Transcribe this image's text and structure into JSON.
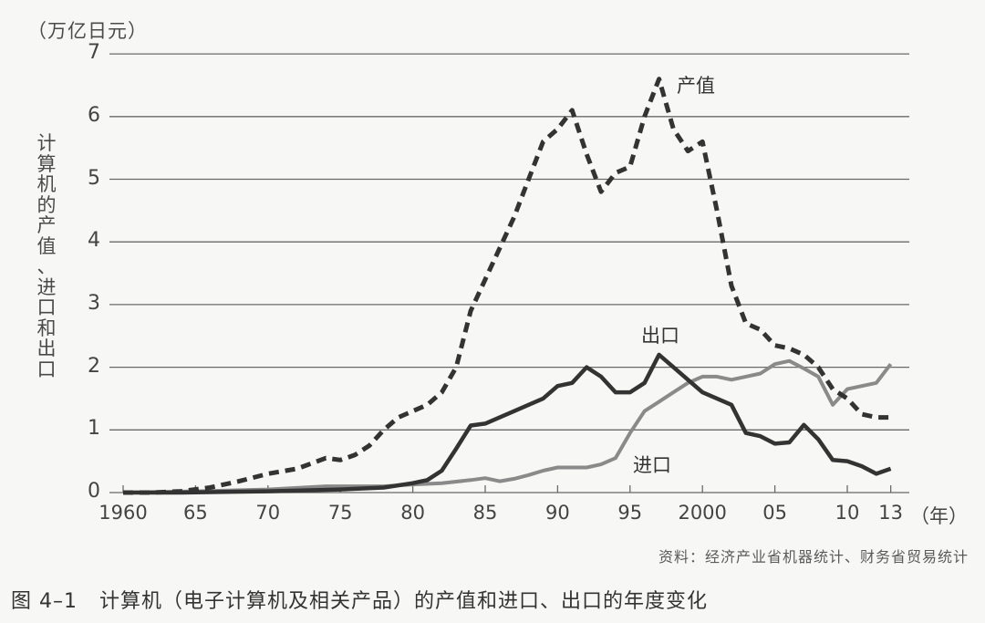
{
  "chart_data": {
    "type": "line",
    "title": "计算机（电子计算机及相关产品）的产值和进口、出口的年度变化",
    "figure_number": "图 4–1",
    "xlabel": "（年）",
    "ylabel": "计算机的产值、进口和出口",
    "y_unit": "（万亿日元）",
    "ylim": [
      0,
      7
    ],
    "yticks": [
      "0",
      "1",
      "2",
      "3",
      "4",
      "5",
      "6",
      "7"
    ],
    "xticks": [
      {
        "year": 1960,
        "label": "1960"
      },
      {
        "year": 1965,
        "label": "65"
      },
      {
        "year": 1970,
        "label": "70"
      },
      {
        "year": 1975,
        "label": "75"
      },
      {
        "year": 1980,
        "label": "80"
      },
      {
        "year": 1985,
        "label": "85"
      },
      {
        "year": 1990,
        "label": "90"
      },
      {
        "year": 1995,
        "label": "95"
      },
      {
        "year": 2000,
        "label": "2000"
      },
      {
        "year": 2005,
        "label": "05"
      },
      {
        "year": 2010,
        "label": "10"
      },
      {
        "year": 2013,
        "label": "13"
      }
    ],
    "grid": true,
    "legend_position": "inline labels",
    "source": "资料：经济产业省机器统计、财务省贸易统计",
    "series": [
      {
        "name": "产值",
        "style": "dashed",
        "color": "#333333",
        "x": [
          1960,
          1962,
          1964,
          1966,
          1968,
          1970,
          1972,
          1974,
          1975,
          1976,
          1977,
          1978,
          1979,
          1980,
          1981,
          1982,
          1983,
          1984,
          1985,
          1986,
          1987,
          1988,
          1989,
          1990,
          1991,
          1992,
          1993,
          1994,
          1995,
          1996,
          1997,
          1998,
          1999,
          2000,
          2001,
          2002,
          2003,
          2004,
          2005,
          2006,
          2007,
          2008,
          2009,
          2010,
          2011,
          2012,
          2013
        ],
        "values": [
          0,
          0,
          0.02,
          0.08,
          0.18,
          0.3,
          0.38,
          0.55,
          0.52,
          0.6,
          0.75,
          1.0,
          1.2,
          1.3,
          1.4,
          1.6,
          2.0,
          2.9,
          3.4,
          3.9,
          4.4,
          5.0,
          5.6,
          5.8,
          6.1,
          5.4,
          4.8,
          5.1,
          5.2,
          6.0,
          6.6,
          5.8,
          5.45,
          5.6,
          4.5,
          3.3,
          2.7,
          2.6,
          2.35,
          2.3,
          2.2,
          2.0,
          1.65,
          1.5,
          1.25,
          1.2,
          1.2
        ]
      },
      {
        "name": "出口",
        "style": "solid",
        "color": "#333333",
        "x": [
          1960,
          1964,
          1970,
          1975,
          1978,
          1980,
          1981,
          1982,
          1983,
          1984,
          1985,
          1986,
          1987,
          1988,
          1989,
          1990,
          1991,
          1992,
          1993,
          1994,
          1995,
          1996,
          1997,
          1998,
          1999,
          2000,
          2001,
          2002,
          2003,
          2004,
          2005,
          2006,
          2007,
          2008,
          2009,
          2010,
          2011,
          2012,
          2013
        ],
        "values": [
          0,
          0,
          0.02,
          0.05,
          0.08,
          0.15,
          0.2,
          0.35,
          0.7,
          1.07,
          1.1,
          1.2,
          1.3,
          1.4,
          1.5,
          1.7,
          1.75,
          2.0,
          1.85,
          1.6,
          1.6,
          1.75,
          2.2,
          2.0,
          1.8,
          1.6,
          1.5,
          1.4,
          0.95,
          0.9,
          0.78,
          0.8,
          1.08,
          0.85,
          0.52,
          0.5,
          0.42,
          0.3,
          0.38
        ]
      },
      {
        "name": "进口",
        "style": "solid",
        "color": "#8a8a8a",
        "x": [
          1960,
          1965,
          1970,
          1974,
          1978,
          1980,
          1982,
          1984,
          1985,
          1986,
          1987,
          1988,
          1989,
          1990,
          1991,
          1992,
          1993,
          1994,
          1995,
          1996,
          1997,
          1998,
          1999,
          2000,
          2001,
          2002,
          2003,
          2004,
          2005,
          2006,
          2007,
          2008,
          2009,
          2010,
          2011,
          2012,
          2013
        ],
        "values": [
          0,
          0.02,
          0.05,
          0.1,
          0.1,
          0.13,
          0.15,
          0.2,
          0.23,
          0.18,
          0.22,
          0.28,
          0.35,
          0.4,
          0.4,
          0.4,
          0.45,
          0.55,
          0.95,
          1.3,
          1.45,
          1.6,
          1.75,
          1.85,
          1.85,
          1.8,
          1.85,
          1.9,
          2.05,
          2.1,
          1.98,
          1.85,
          1.4,
          1.65,
          1.7,
          1.75,
          2.05
        ]
      }
    ],
    "annotations": [
      {
        "text": "产值",
        "series": "产值"
      },
      {
        "text": "出口",
        "series": "出口"
      },
      {
        "text": "进口",
        "series": "进口"
      }
    ]
  },
  "labels": {
    "unit": "（万亿日元）",
    "ylabel_chars": [
      "计",
      "算",
      "机",
      "的",
      "产",
      "值",
      "、",
      "进",
      "口",
      "和",
      "出",
      "口"
    ],
    "xunit": "（年）",
    "production": "产值",
    "export": "出口",
    "import": "进口",
    "source": "资料：经济产业省机器统计、财务省贸易统计",
    "fig_num": "图 4–1",
    "caption": "计算机（电子计算机及相关产品）的产值和进口、出口的年度变化"
  }
}
